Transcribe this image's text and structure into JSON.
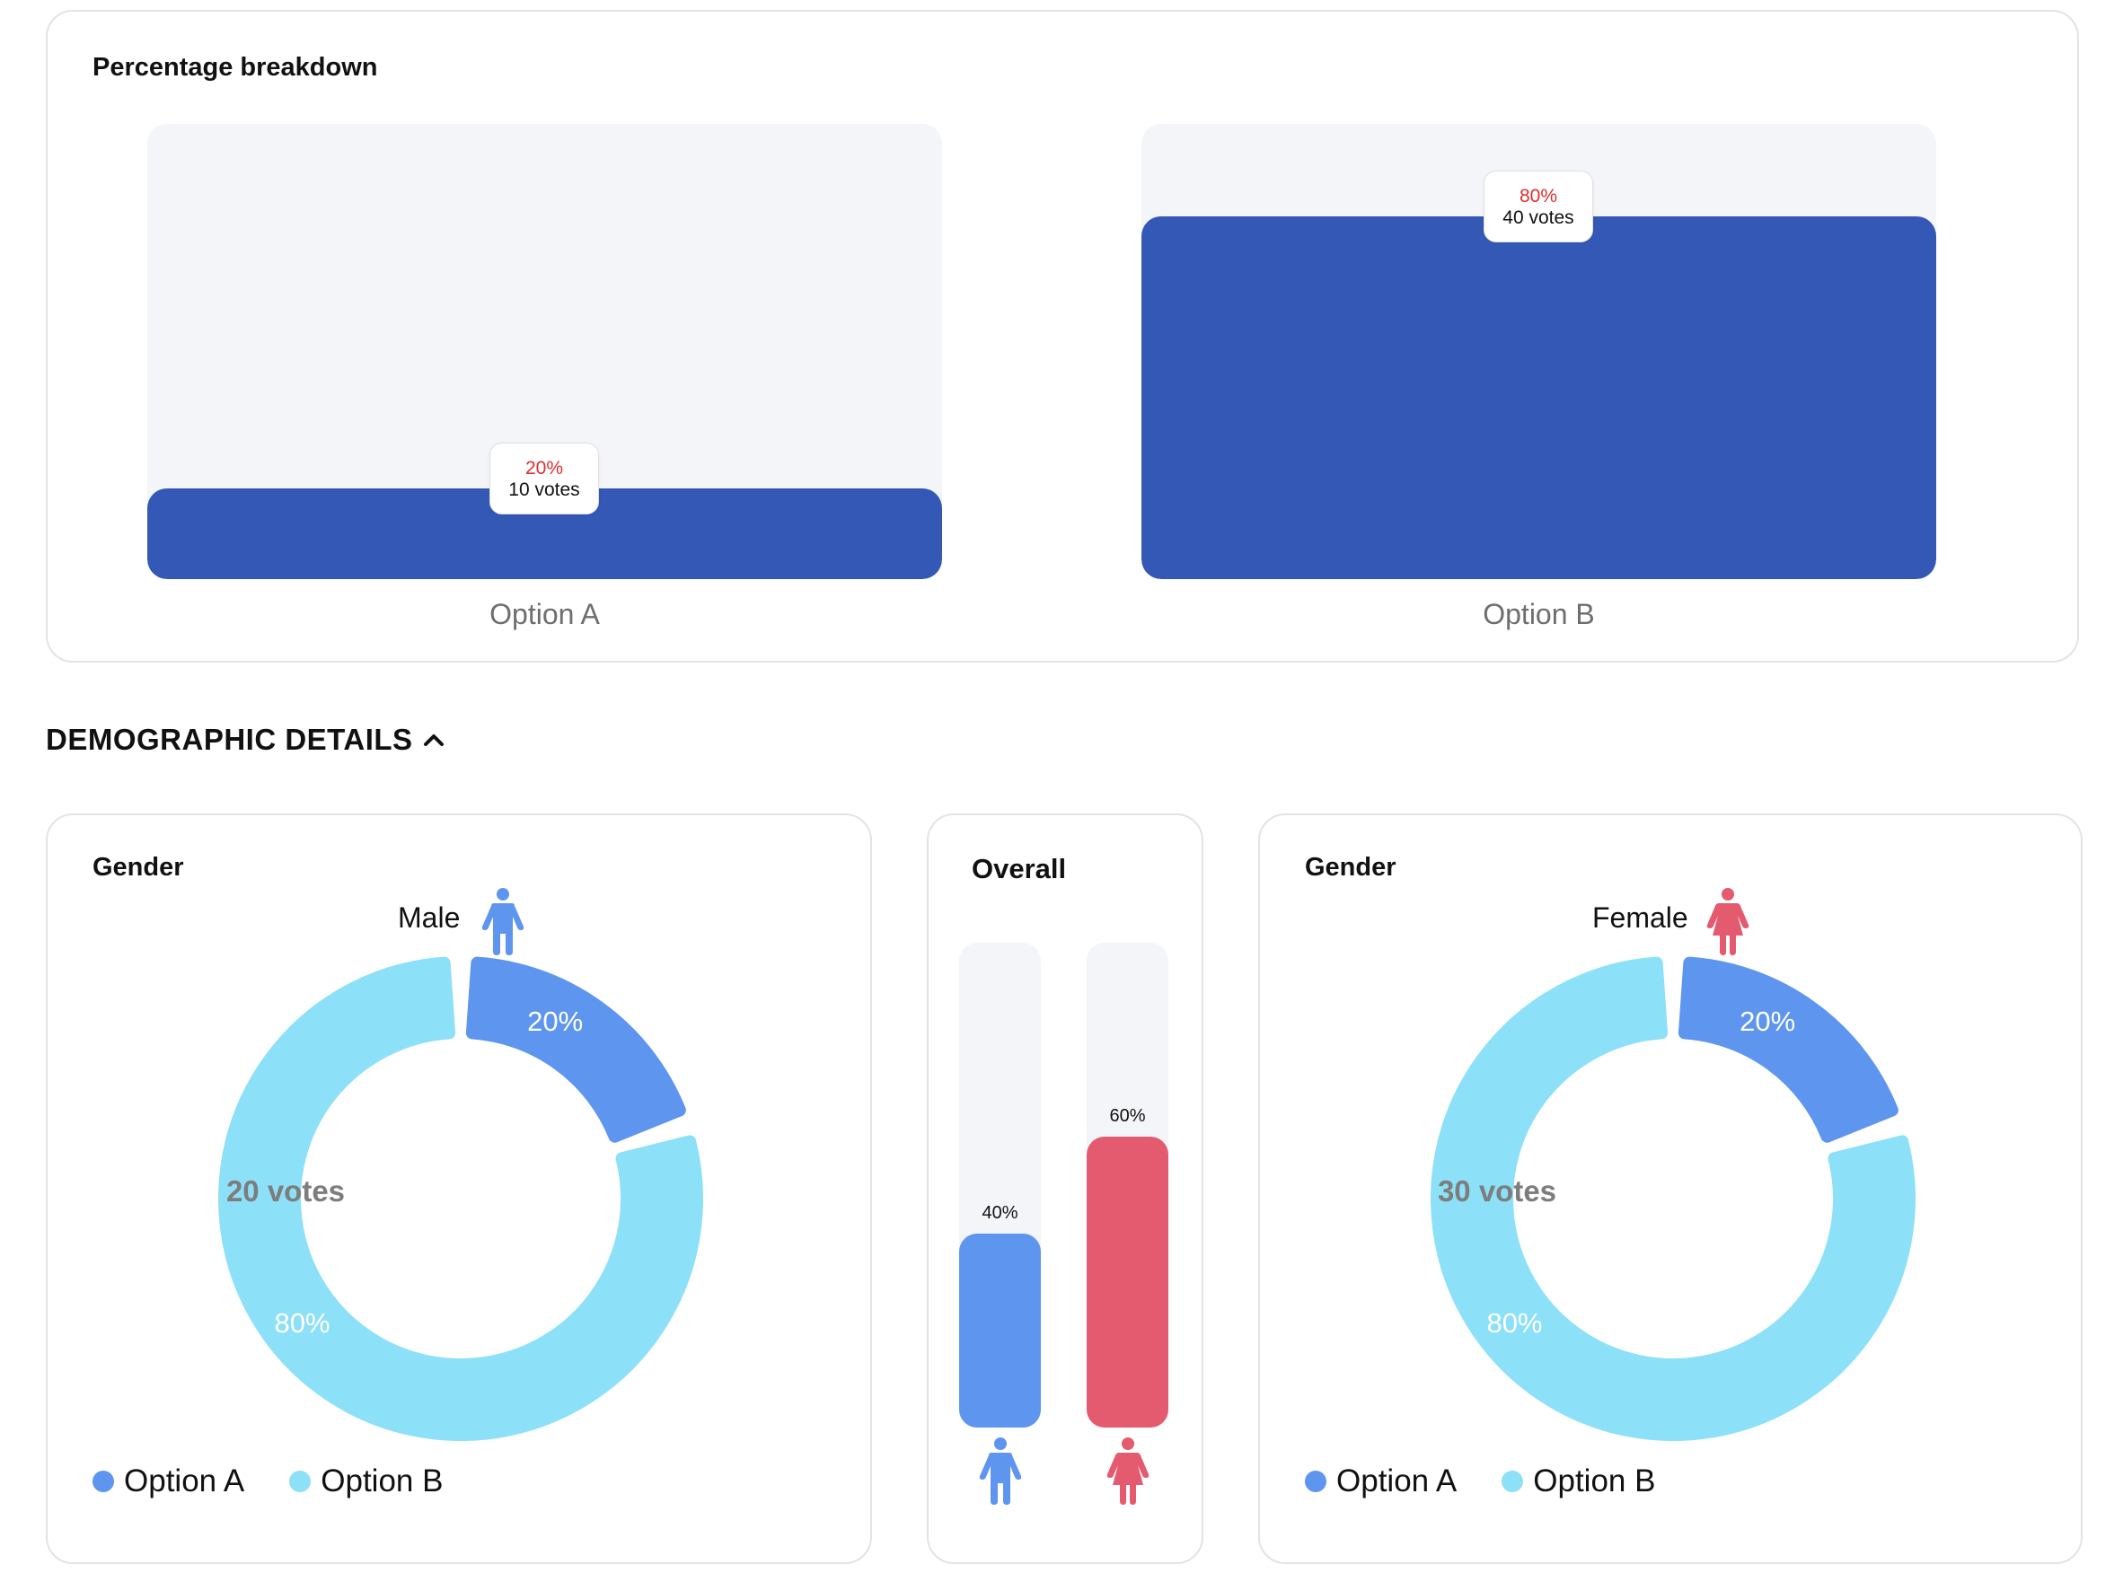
{
  "breakdown": {
    "title": "Percentage breakdown",
    "colors": {
      "fill": "#3458b5",
      "track": "#f4f5f9",
      "percent_text": "#e02d2d"
    },
    "options": [
      {
        "label": "Option A",
        "percent_label": "20%",
        "percent": 20,
        "votes_label": "10 votes"
      },
      {
        "label": "Option B",
        "percent_label": "80%",
        "percent": 80,
        "votes_label": "40 votes"
      }
    ]
  },
  "demographics": {
    "heading": "DEMOGRAPHIC DETAILS",
    "toggle_icon": "chevron-up-icon",
    "male": {
      "title": "Gender",
      "label": "Male",
      "icon": "male-person-icon",
      "icon_color": "#5e95ee",
      "center_label": "20 votes",
      "slices": [
        {
          "name": "Option A",
          "percent": 20,
          "label": "20%",
          "color": "#5e95ee"
        },
        {
          "name": "Option B",
          "percent": 80,
          "label": "80%",
          "color": "#8ce0f7"
        }
      ]
    },
    "overall": {
      "title": "Overall",
      "bars": [
        {
          "icon": "male-person-icon",
          "percent": 40,
          "label": "40%",
          "color": "#5e95ee"
        },
        {
          "icon": "female-person-icon",
          "percent": 60,
          "label": "60%",
          "color": "#e45a6e"
        }
      ]
    },
    "female": {
      "title": "Gender",
      "label": "Female",
      "icon": "female-person-icon",
      "icon_color": "#e45a6e",
      "center_label": "30 votes",
      "slices": [
        {
          "name": "Option A",
          "percent": 20,
          "label": "20%",
          "color": "#5e95ee"
        },
        {
          "name": "Option B",
          "percent": 80,
          "label": "80%",
          "color": "#8ce0f7"
        }
      ]
    },
    "legend": [
      {
        "label": "Option A",
        "color": "#5e95ee"
      },
      {
        "label": "Option B",
        "color": "#8ce0f7"
      }
    ]
  }
}
